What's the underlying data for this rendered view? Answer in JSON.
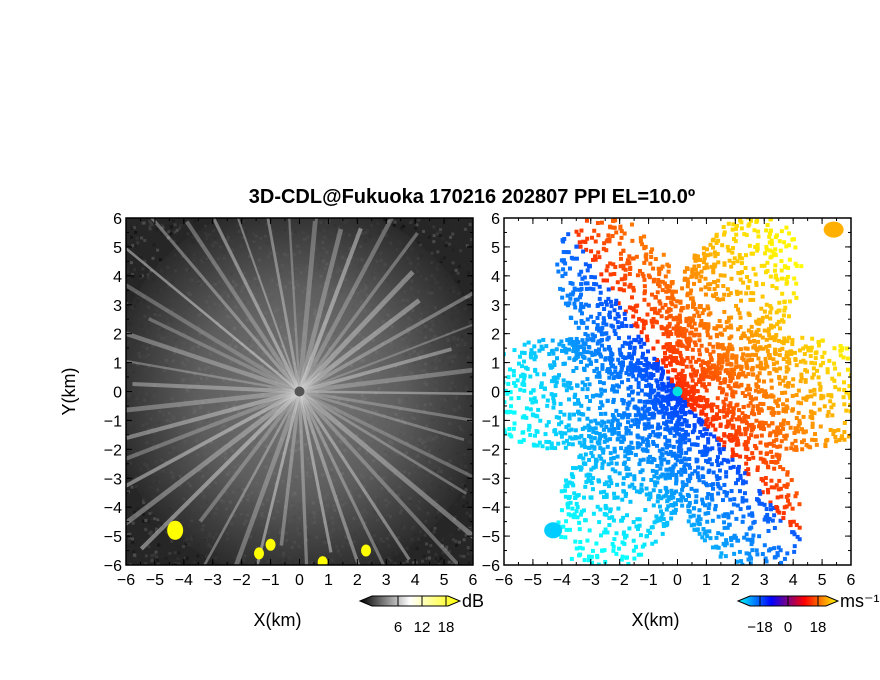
{
  "title": "3D-CDL@Fukuoka 170216 202807 PPI EL=10.0º",
  "chart_data": [
    {
      "type": "heatmap",
      "name": "reflectivity",
      "xlabel": "X(km)",
      "ylabel": "Y(km)",
      "xlim": [
        -6,
        6
      ],
      "ylim": [
        -6,
        6
      ],
      "xticks": [
        "−6",
        "−5",
        "−4",
        "−3",
        "−2",
        "−1",
        "0",
        "1",
        "2",
        "3",
        "4",
        "5",
        "6"
      ],
      "yticks": [
        "6",
        "5",
        "4",
        "3",
        "2",
        "1",
        "0",
        "−1",
        "−2",
        "−3",
        "−4",
        "−5",
        "−6"
      ],
      "colorbar": {
        "unit": "dB",
        "ticks": [
          "6",
          "12",
          "18"
        ],
        "colors": [
          "#000000",
          "#ffffff",
          "#ffff00"
        ]
      },
      "highlights": [
        [
          -4.3,
          -4.8
        ],
        [
          -1.0,
          -5.3
        ],
        [
          -1.4,
          -5.6
        ],
        [
          0.8,
          -5.9
        ],
        [
          2.3,
          -5.5
        ]
      ]
    },
    {
      "type": "heatmap",
      "name": "doppler_velocity",
      "xlabel": "X(km)",
      "xlim": [
        -6,
        6
      ],
      "ylim": [
        -6,
        6
      ],
      "xticks": [
        "−6",
        "−5",
        "−4",
        "−3",
        "−2",
        "−1",
        "0",
        "1",
        "2",
        "3",
        "4",
        "5",
        "6"
      ],
      "yticks": [
        "6",
        "5",
        "4",
        "3",
        "2",
        "1",
        "0",
        "−1",
        "−2",
        "−3",
        "−4",
        "−5",
        "−6"
      ],
      "colorbar": {
        "unit": "ms⁻¹",
        "ticks": [
          "−18",
          "0",
          "18"
        ],
        "colors": [
          "#00ffff",
          "#0000ff",
          "#ff0000",
          "#ffff00"
        ]
      }
    }
  ]
}
